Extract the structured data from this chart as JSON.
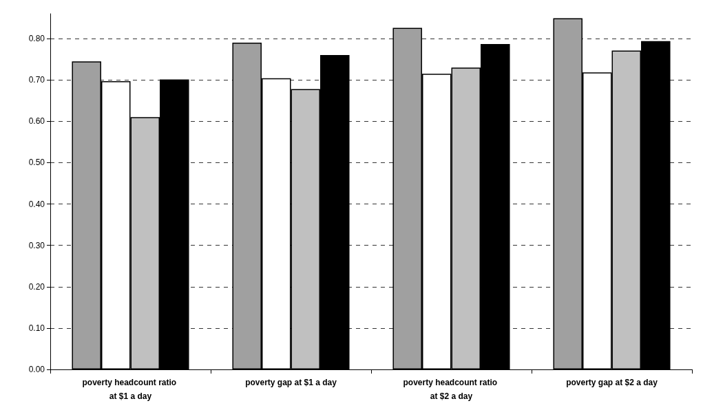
{
  "chart_data": {
    "type": "bar",
    "categories": [
      "poverty headcount ratio at $1 a day",
      "poverty gap at $1 a day",
      "poverty headcount ratio at $2 a day",
      "poverty gap at $2 a day"
    ],
    "series": [
      {
        "color": "#a0a0a0",
        "values": [
          0.745,
          0.79,
          0.826,
          0.849
        ]
      },
      {
        "color": "#ffffff",
        "values": [
          0.697,
          0.704,
          0.715,
          0.718
        ]
      },
      {
        "color": "#c0c0c0",
        "values": [
          0.61,
          0.678,
          0.73,
          0.771
        ]
      },
      {
        "color": "#000000",
        "values": [
          0.701,
          0.76,
          0.787,
          0.794
        ]
      }
    ],
    "ylim": [
      0,
      0.86
    ],
    "yticks": [
      {
        "value": 0,
        "label": "0.00"
      },
      {
        "value": 0.1,
        "label": "0.10"
      },
      {
        "value": 0.2,
        "label": "0.20"
      },
      {
        "value": 0.3,
        "label": "0.30"
      },
      {
        "value": 0.4,
        "label": "0.40"
      },
      {
        "value": 0.5,
        "label": "0.50"
      },
      {
        "value": 0.6,
        "label": "0.60"
      },
      {
        "value": 0.7,
        "label": "0.70"
      },
      {
        "value": 0.8,
        "label": "0.80"
      }
    ],
    "grid": "y"
  }
}
